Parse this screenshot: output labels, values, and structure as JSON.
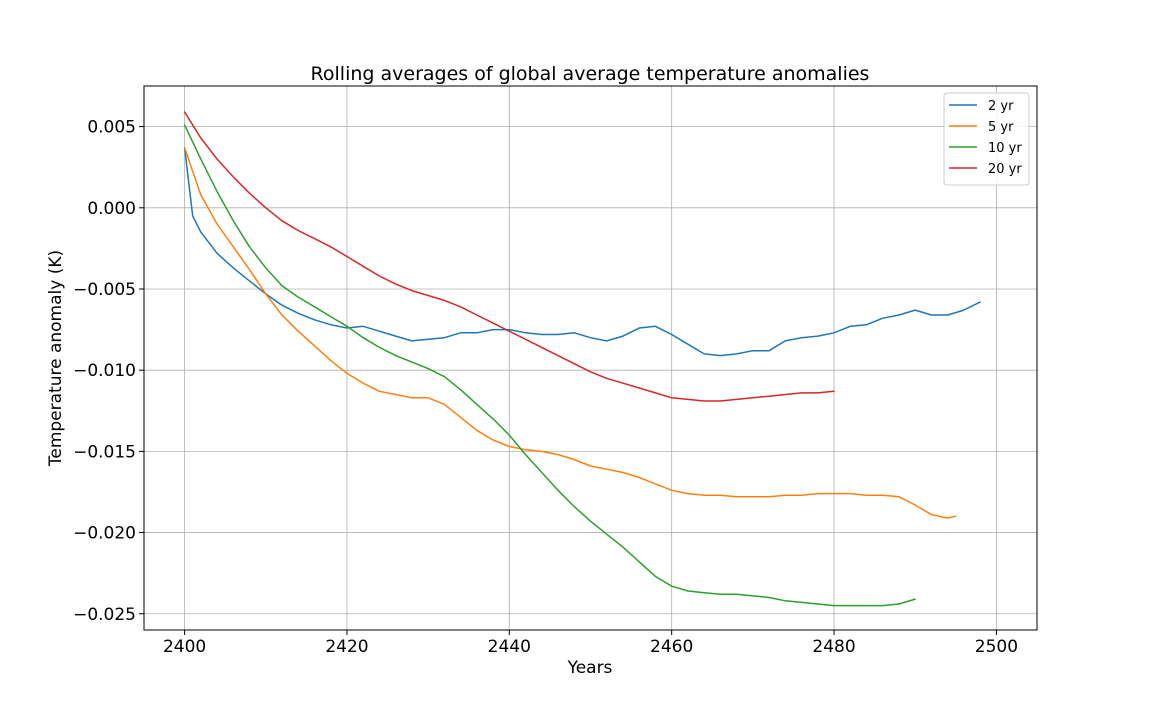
{
  "chart_data": {
    "type": "line",
    "title": "Rolling averages of global average temperature anomalies",
    "xlabel": "Years",
    "ylabel": "Temperature anomaly (K)",
    "xlim": [
      2395,
      2505
    ],
    "ylim": [
      -0.026,
      0.0075
    ],
    "xticks": [
      2400,
      2420,
      2440,
      2460,
      2480,
      2500
    ],
    "yticks": [
      0.005,
      0.0,
      -0.005,
      -0.01,
      -0.015,
      -0.02,
      -0.025
    ],
    "ytick_labels": [
      "0.005",
      "0.000",
      "−0.005",
      "−0.010",
      "−0.015",
      "−0.020",
      "−0.025"
    ],
    "grid": true,
    "legend_position": "top-right",
    "series": [
      {
        "name": "2 yr",
        "color": "#1f77b4",
        "points": [
          [
            2400,
            0.0037
          ],
          [
            2401,
            -0.0005
          ],
          [
            2402,
            -0.0015
          ],
          [
            2404,
            -0.0028
          ],
          [
            2406,
            -0.0037
          ],
          [
            2408,
            -0.0045
          ],
          [
            2410,
            -0.0053
          ],
          [
            2412,
            -0.006
          ],
          [
            2414,
            -0.0065
          ],
          [
            2416,
            -0.0069
          ],
          [
            2418,
            -0.0072
          ],
          [
            2420,
            -0.0074
          ],
          [
            2422,
            -0.0073
          ],
          [
            2424,
            -0.0076
          ],
          [
            2426,
            -0.0079
          ],
          [
            2428,
            -0.0082
          ],
          [
            2430,
            -0.0081
          ],
          [
            2432,
            -0.008
          ],
          [
            2434,
            -0.0077
          ],
          [
            2436,
            -0.0077
          ],
          [
            2438,
            -0.0075
          ],
          [
            2440,
            -0.0075
          ],
          [
            2442,
            -0.0077
          ],
          [
            2444,
            -0.0078
          ],
          [
            2446,
            -0.0078
          ],
          [
            2448,
            -0.0077
          ],
          [
            2450,
            -0.008
          ],
          [
            2452,
            -0.0082
          ],
          [
            2454,
            -0.0079
          ],
          [
            2456,
            -0.0074
          ],
          [
            2458,
            -0.0073
          ],
          [
            2460,
            -0.0078
          ],
          [
            2462,
            -0.0084
          ],
          [
            2464,
            -0.009
          ],
          [
            2466,
            -0.0091
          ],
          [
            2468,
            -0.009
          ],
          [
            2470,
            -0.0088
          ],
          [
            2472,
            -0.0088
          ],
          [
            2474,
            -0.0082
          ],
          [
            2476,
            -0.008
          ],
          [
            2478,
            -0.0079
          ],
          [
            2480,
            -0.0077
          ],
          [
            2482,
            -0.0073
          ],
          [
            2484,
            -0.0072
          ],
          [
            2486,
            -0.0068
          ],
          [
            2488,
            -0.0066
          ],
          [
            2490,
            -0.0063
          ],
          [
            2492,
            -0.0066
          ],
          [
            2494,
            -0.0066
          ],
          [
            2496,
            -0.0063
          ],
          [
            2498,
            -0.0058
          ]
        ]
      },
      {
        "name": "5 yr",
        "color": "#ff7f0e",
        "points": [
          [
            2400,
            0.0037
          ],
          [
            2402,
            0.0008
          ],
          [
            2404,
            -0.001
          ],
          [
            2406,
            -0.0024
          ],
          [
            2408,
            -0.0038
          ],
          [
            2410,
            -0.0053
          ],
          [
            2412,
            -0.0066
          ],
          [
            2414,
            -0.0076
          ],
          [
            2416,
            -0.0085
          ],
          [
            2418,
            -0.0094
          ],
          [
            2420,
            -0.0102
          ],
          [
            2422,
            -0.0108
          ],
          [
            2424,
            -0.0113
          ],
          [
            2426,
            -0.0115
          ],
          [
            2428,
            -0.0117
          ],
          [
            2430,
            -0.0117
          ],
          [
            2432,
            -0.0121
          ],
          [
            2434,
            -0.0129
          ],
          [
            2436,
            -0.0137
          ],
          [
            2438,
            -0.0143
          ],
          [
            2440,
            -0.0147
          ],
          [
            2442,
            -0.0149
          ],
          [
            2444,
            -0.015
          ],
          [
            2446,
            -0.0152
          ],
          [
            2448,
            -0.0155
          ],
          [
            2450,
            -0.0159
          ],
          [
            2452,
            -0.0161
          ],
          [
            2454,
            -0.0163
          ],
          [
            2456,
            -0.0166
          ],
          [
            2458,
            -0.017
          ],
          [
            2460,
            -0.0174
          ],
          [
            2462,
            -0.0176
          ],
          [
            2464,
            -0.0177
          ],
          [
            2466,
            -0.0177
          ],
          [
            2468,
            -0.0178
          ],
          [
            2470,
            -0.0178
          ],
          [
            2472,
            -0.0178
          ],
          [
            2474,
            -0.0177
          ],
          [
            2476,
            -0.0177
          ],
          [
            2478,
            -0.0176
          ],
          [
            2480,
            -0.0176
          ],
          [
            2482,
            -0.0176
          ],
          [
            2484,
            -0.0177
          ],
          [
            2486,
            -0.0177
          ],
          [
            2488,
            -0.0178
          ],
          [
            2490,
            -0.0183
          ],
          [
            2492,
            -0.0189
          ],
          [
            2494,
            -0.0191
          ],
          [
            2495,
            -0.019
          ]
        ]
      },
      {
        "name": "10 yr",
        "color": "#2ca02c",
        "points": [
          [
            2400,
            0.0051
          ],
          [
            2402,
            0.003
          ],
          [
            2404,
            0.001
          ],
          [
            2406,
            -0.0008
          ],
          [
            2408,
            -0.0024
          ],
          [
            2410,
            -0.0037
          ],
          [
            2412,
            -0.0048
          ],
          [
            2414,
            -0.0055
          ],
          [
            2416,
            -0.0061
          ],
          [
            2418,
            -0.0067
          ],
          [
            2420,
            -0.0073
          ],
          [
            2422,
            -0.008
          ],
          [
            2424,
            -0.0086
          ],
          [
            2426,
            -0.0091
          ],
          [
            2428,
            -0.0095
          ],
          [
            2430,
            -0.0099
          ],
          [
            2432,
            -0.0104
          ],
          [
            2434,
            -0.0112
          ],
          [
            2436,
            -0.0121
          ],
          [
            2438,
            -0.013
          ],
          [
            2440,
            -0.014
          ],
          [
            2442,
            -0.0152
          ],
          [
            2444,
            -0.0163
          ],
          [
            2446,
            -0.0174
          ],
          [
            2448,
            -0.0184
          ],
          [
            2450,
            -0.0193
          ],
          [
            2452,
            -0.0201
          ],
          [
            2454,
            -0.0209
          ],
          [
            2456,
            -0.0218
          ],
          [
            2458,
            -0.0227
          ],
          [
            2460,
            -0.0233
          ],
          [
            2462,
            -0.0236
          ],
          [
            2464,
            -0.0237
          ],
          [
            2466,
            -0.0238
          ],
          [
            2468,
            -0.0238
          ],
          [
            2470,
            -0.0239
          ],
          [
            2472,
            -0.024
          ],
          [
            2474,
            -0.0242
          ],
          [
            2476,
            -0.0243
          ],
          [
            2478,
            -0.0244
          ],
          [
            2480,
            -0.0245
          ],
          [
            2482,
            -0.0245
          ],
          [
            2484,
            -0.0245
          ],
          [
            2486,
            -0.0245
          ],
          [
            2488,
            -0.0244
          ],
          [
            2490,
            -0.0241
          ]
        ]
      },
      {
        "name": "20 yr",
        "color": "#d62728",
        "points": [
          [
            2400,
            0.0059
          ],
          [
            2402,
            0.0043
          ],
          [
            2404,
            0.003
          ],
          [
            2406,
            0.0019
          ],
          [
            2408,
            0.0009
          ],
          [
            2410,
            0.0
          ],
          [
            2412,
            -0.0008
          ],
          [
            2414,
            -0.0014
          ],
          [
            2416,
            -0.0019
          ],
          [
            2418,
            -0.0024
          ],
          [
            2420,
            -0.003
          ],
          [
            2422,
            -0.0036
          ],
          [
            2424,
            -0.0042
          ],
          [
            2426,
            -0.0047
          ],
          [
            2428,
            -0.0051
          ],
          [
            2430,
            -0.0054
          ],
          [
            2432,
            -0.0057
          ],
          [
            2434,
            -0.0061
          ],
          [
            2436,
            -0.0066
          ],
          [
            2438,
            -0.0071
          ],
          [
            2440,
            -0.0076
          ],
          [
            2442,
            -0.0081
          ],
          [
            2444,
            -0.0086
          ],
          [
            2446,
            -0.0091
          ],
          [
            2448,
            -0.0096
          ],
          [
            2450,
            -0.0101
          ],
          [
            2452,
            -0.0105
          ],
          [
            2454,
            -0.0108
          ],
          [
            2456,
            -0.0111
          ],
          [
            2458,
            -0.0114
          ],
          [
            2460,
            -0.0117
          ],
          [
            2462,
            -0.0118
          ],
          [
            2464,
            -0.0119
          ],
          [
            2466,
            -0.0119
          ],
          [
            2468,
            -0.0118
          ],
          [
            2470,
            -0.0117
          ],
          [
            2472,
            -0.0116
          ],
          [
            2474,
            -0.0115
          ],
          [
            2476,
            -0.0114
          ],
          [
            2478,
            -0.0114
          ],
          [
            2480,
            -0.0113
          ]
        ]
      }
    ]
  }
}
